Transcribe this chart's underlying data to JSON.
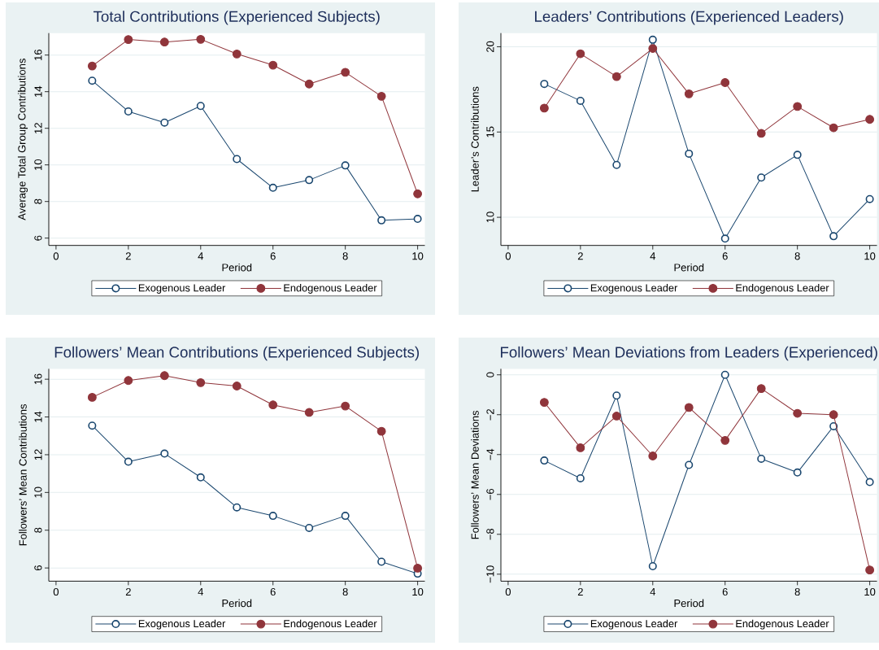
{
  "chart_data": [
    {
      "type": "line",
      "title": "Total Contributions (Experienced Subjects)",
      "xlabel": "Period",
      "ylabel": "Average Total Group Contributions",
      "x": [
        1,
        2,
        3,
        4,
        5,
        6,
        7,
        8,
        9,
        10
      ],
      "xlim": [
        -0.2,
        10.2
      ],
      "xticks": [
        0,
        2,
        4,
        6,
        8,
        10
      ],
      "ylim": [
        5.6,
        17.2
      ],
      "yticks": [
        6,
        8,
        10,
        12,
        14,
        16
      ],
      "grid": "y",
      "legend": "bottom",
      "marker": "circle",
      "series": [
        {
          "name": "Exogenous Leader",
          "color": "#1a476f",
          "values": [
            14.6,
            12.92,
            12.31,
            13.22,
            10.32,
            8.75,
            9.17,
            9.97,
            6.97,
            7.05
          ]
        },
        {
          "name": "Endogenous Leader",
          "color": "#90353b",
          "values": [
            15.4,
            16.85,
            16.71,
            16.86,
            16.06,
            15.45,
            14.42,
            15.06,
            13.75,
            8.42
          ]
        }
      ]
    },
    {
      "type": "line",
      "title": "Leaders’ Contributions (Experienced Leaders)",
      "xlabel": "Period",
      "ylabel": "Leader’s Contributions",
      "x": [
        1,
        2,
        3,
        4,
        5,
        6,
        7,
        8,
        9,
        10
      ],
      "xlim": [
        -0.2,
        10.2
      ],
      "xticks": [
        0,
        2,
        4,
        6,
        8,
        10
      ],
      "ylim": [
        8.35,
        20.8
      ],
      "yticks": [
        10,
        15,
        20
      ],
      "grid": "y",
      "legend": "bottom",
      "marker": "circle",
      "series": [
        {
          "name": "Exogenous Leader",
          "color": "#1a476f",
          "values": [
            17.82,
            16.83,
            13.07,
            20.41,
            13.73,
            8.75,
            12.33,
            13.66,
            8.89,
            11.07
          ]
        },
        {
          "name": "Endogenous Leader",
          "color": "#90353b",
          "values": [
            16.4,
            19.59,
            18.25,
            19.9,
            17.24,
            17.9,
            14.92,
            16.5,
            15.25,
            15.74
          ]
        }
      ]
    },
    {
      "type": "line",
      "title": "Followers’ Mean Contributions (Experienced Subjects)",
      "xlabel": "Period",
      "ylabel": "Followers’ Mean Contributions",
      "x": [
        1,
        2,
        3,
        4,
        5,
        6,
        7,
        8,
        9,
        10
      ],
      "xlim": [
        -0.2,
        10.2
      ],
      "xticks": [
        0,
        2,
        4,
        6,
        8,
        10
      ],
      "ylim": [
        5.3,
        16.55
      ],
      "yticks": [
        6,
        8,
        10,
        12,
        14,
        16
      ],
      "grid": "y",
      "legend": "bottom",
      "marker": "circle",
      "series": [
        {
          "name": "Exogenous Leader",
          "color": "#1a476f",
          "values": [
            13.54,
            11.63,
            12.06,
            10.8,
            9.21,
            8.76,
            8.12,
            8.76,
            6.33,
            5.7
          ]
        },
        {
          "name": "Endogenous Leader",
          "color": "#90353b",
          "values": [
            15.04,
            15.93,
            16.19,
            15.82,
            15.64,
            14.64,
            14.24,
            14.58,
            13.24,
            5.99
          ]
        }
      ]
    },
    {
      "type": "line",
      "title": "Followers’ Mean Deviations from Leaders (Experienced)",
      "xlabel": "Period",
      "ylabel": "Followers’ Mean Deviations",
      "x": [
        1,
        2,
        3,
        4,
        5,
        6,
        7,
        8,
        9,
        10
      ],
      "xlim": [
        -0.2,
        10.2
      ],
      "xticks": [
        0,
        2,
        4,
        6,
        8,
        10
      ],
      "ylim": [
        -10.35,
        0.3
      ],
      "yticks": [
        {
          "value": -10,
          "label": "−10"
        },
        {
          "value": -8,
          "label": "−8"
        },
        {
          "value": -6,
          "label": "−6"
        },
        {
          "value": -4,
          "label": "−4"
        },
        {
          "value": -2,
          "label": "−2"
        },
        0
      ],
      "grid": "y",
      "legend": "bottom",
      "marker": "circle",
      "series": [
        {
          "name": "Exogenous Leader",
          "color": "#1a476f",
          "values": [
            -4.3,
            -5.19,
            -1.04,
            -9.6,
            -4.52,
            0,
            -4.21,
            -4.9,
            -2.58,
            -5.38
          ]
        },
        {
          "name": "Endogenous Leader",
          "color": "#90353b",
          "values": [
            -1.38,
            -3.66,
            -2.07,
            -4.07,
            -1.64,
            -3.29,
            -0.69,
            -1.93,
            -2.0,
            -9.79
          ]
        }
      ]
    }
  ]
}
